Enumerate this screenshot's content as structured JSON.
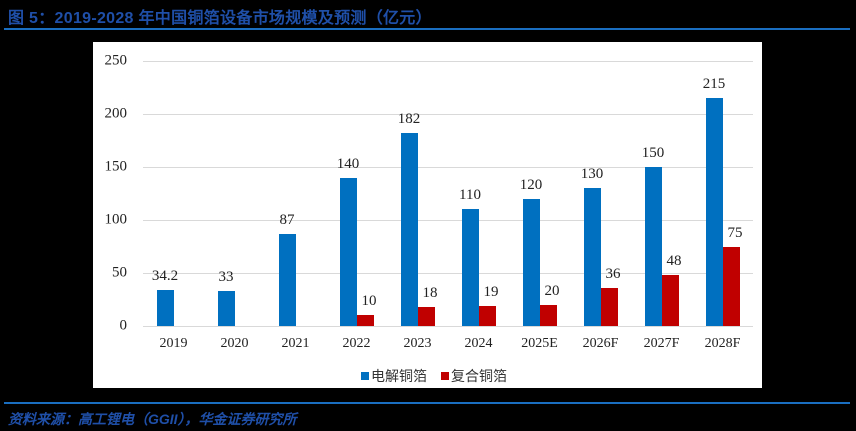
{
  "header": {
    "title": "图 5：2019-2028 年中国铜箔设备市场规模及预测（亿元）"
  },
  "footer": {
    "source": "资料来源：高工锂电（GGII），华金证券研究所"
  },
  "colors": {
    "series_1": "#0070c0",
    "series_2": "#c00000",
    "title": "#1f4fa8",
    "rule": "#1a6ec0"
  },
  "chart_data": {
    "type": "bar",
    "title": "2019-2028 年中国铜箔设备市场规模及预测（亿元）",
    "xlabel": "",
    "ylabel": "",
    "ylim": [
      0,
      250
    ],
    "yticks": [
      0,
      50,
      100,
      150,
      200,
      250
    ],
    "ytick_labels": [
      "0",
      "50",
      "100",
      "150",
      "200",
      "250"
    ],
    "grid": true,
    "legend_position": "bottom",
    "categories": [
      "2019",
      "2020",
      "2021",
      "2022",
      "2023",
      "2024",
      "2025E",
      "2026F",
      "2027F",
      "2028F"
    ],
    "series": [
      {
        "name": "电解铜箔",
        "values": [
          34.2,
          33,
          87,
          140,
          182,
          110,
          120,
          130,
          150,
          215
        ],
        "labels": [
          "34.2",
          "33",
          "87",
          "140",
          "182",
          "110",
          "120",
          "130",
          "150",
          "215"
        ]
      },
      {
        "name": "复合铜箔",
        "values": [
          null,
          null,
          null,
          10,
          18,
          19,
          20,
          36,
          48,
          75
        ],
        "labels": [
          null,
          null,
          null,
          "10",
          "18",
          "19",
          "20",
          "36",
          "48",
          "75"
        ]
      }
    ]
  }
}
